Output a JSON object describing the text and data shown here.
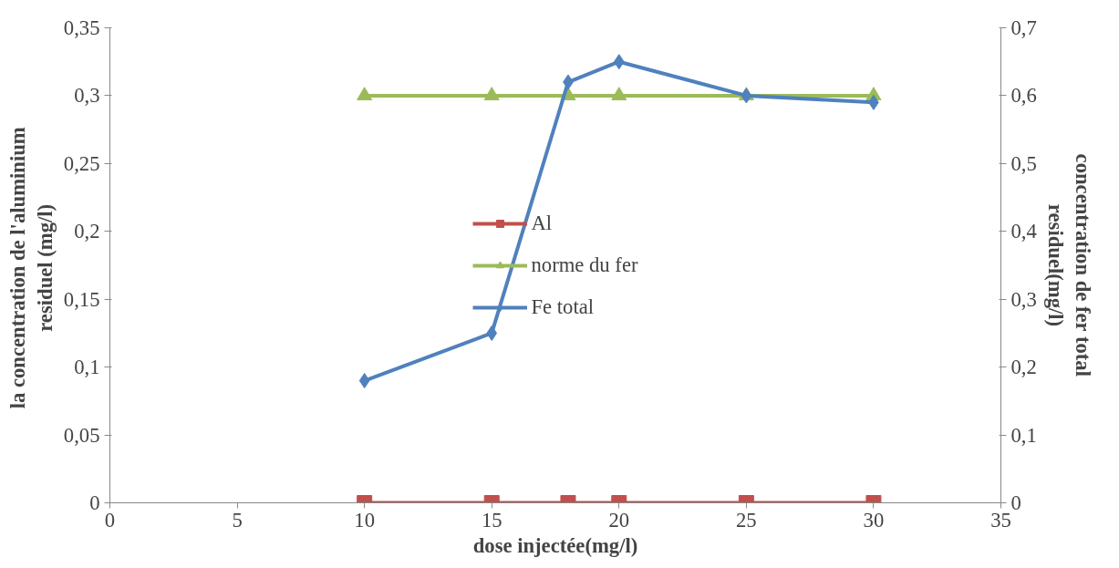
{
  "chart_data": {
    "type": "line",
    "xlabel": "dose injectée(mg/l)",
    "ylabel": "la concentration de  l'aluminium residuel  (mg/l)",
    "y2label": "concentration de fer total residuel(mg/l)",
    "x": [
      10,
      15,
      18,
      20,
      25,
      30
    ],
    "series": [
      {
        "name": "Al",
        "color": "#c0504d",
        "marker": "square",
        "values": [
          0,
          0,
          0,
          0,
          0,
          0
        ]
      },
      {
        "name": "norme du fer",
        "color": "#9bbb59",
        "marker": "triangle",
        "values": [
          0.3,
          0.3,
          0.3,
          0.3,
          0.3,
          0.3
        ]
      },
      {
        "name": "Fe total",
        "color": "#4f81bd",
        "marker": "diamond",
        "axis": "y2",
        "values": [
          0.18,
          0.25,
          0.62,
          0.65,
          0.6,
          0.59
        ]
      }
    ],
    "xlim": [
      0,
      35
    ],
    "xticks": [
      0,
      5,
      10,
      15,
      20,
      25,
      30,
      35
    ],
    "ylim": [
      0,
      0.35
    ],
    "yticks": [
      0,
      {
        "value": 0.05,
        "label": "0,05"
      },
      {
        "value": 0.1,
        "label": "0,1"
      },
      {
        "value": 0.15,
        "label": "0,15"
      },
      {
        "value": 0.2,
        "label": "0,2"
      },
      {
        "value": 0.25,
        "label": "0,25"
      },
      {
        "value": 0.3,
        "label": "0,3"
      },
      {
        "value": 0.35,
        "label": "0,35"
      }
    ],
    "y2lim": [
      0,
      0.7
    ],
    "y2ticks": [
      0,
      {
        "value": 0.1,
        "label": "0,1"
      },
      {
        "value": 0.2,
        "label": "0,2"
      },
      {
        "value": 0.3,
        "label": "0,3"
      },
      {
        "value": 0.4,
        "label": "0,4"
      },
      {
        "value": 0.5,
        "label": "0,5"
      },
      {
        "value": 0.6,
        "label": "0,6"
      },
      {
        "value": 0.7,
        "label": "0,7"
      }
    ],
    "grid": false,
    "legend": "center"
  }
}
